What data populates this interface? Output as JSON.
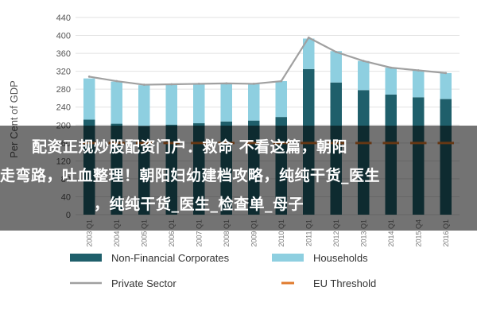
{
  "chart_data": {
    "type": "bar",
    "ylabel": "Per Cent of GDP",
    "ylim": [
      0,
      440
    ],
    "yticks": [
      0,
      40,
      80,
      120,
      160,
      200,
      240,
      280,
      320,
      360,
      400,
      440
    ],
    "categories": [
      "2003 Q1",
      "2004 Q1",
      "2005 Q1",
      "2006 Q1",
      "2007 Q1",
      "2008 Q1",
      "2009 Q1",
      "2010 Q1",
      "2011 Q1",
      "2012 Q1",
      "2013 Q1",
      "2014 Q1",
      "2015 Q4",
      "2016 Q1"
    ],
    "series": [
      {
        "name": "Non-Financial Corporates",
        "kind": "stacked-bar",
        "color": "#1f5f6b",
        "values": [
          212,
          203,
          197,
          201,
          204,
          208,
          210,
          218,
          325,
          295,
          278,
          268,
          262,
          258
        ]
      },
      {
        "name": "Households",
        "kind": "stacked-bar",
        "color": "#8ecfe0",
        "values": [
          92,
          94,
          92,
          90,
          88,
          85,
          82,
          80,
          68,
          70,
          65,
          60,
          60,
          58
        ]
      },
      {
        "name": "Private Sector",
        "kind": "line",
        "color": "#a0a0a0",
        "values": [
          308,
          298,
          290,
          291,
          292,
          293,
          292,
          298,
          395,
          363,
          343,
          328,
          322,
          316
        ]
      },
      {
        "name": "EU Threshold",
        "kind": "dash-line",
        "color": "#e07b2e",
        "values": [
          160,
          160,
          160,
          160,
          160,
          160,
          160,
          160,
          160,
          160,
          160,
          160,
          160,
          160
        ]
      }
    ],
    "legend": {
      "position": "bottom",
      "items": [
        {
          "label": "Non-Financial Corporates",
          "style": "bar",
          "color": "#1f5f6b"
        },
        {
          "label": "Households",
          "style": "bar",
          "color": "#8ecfe0"
        },
        {
          "label": "Private Sector",
          "style": "line",
          "color": "#a0a0a0"
        },
        {
          "label": "EU Threshold",
          "style": "dash",
          "color": "#e07b2e"
        }
      ]
    },
    "grid": true
  },
  "overlay": {
    "lines": [
      "配资正规炒股配资门户．救命 不看这篇，朝阳",
      "走弯路，吐血整理！朝阳妇幼建档攻略，纯纯干货_医生",
      "，纯纯干货_医生_检查单_母子"
    ]
  }
}
